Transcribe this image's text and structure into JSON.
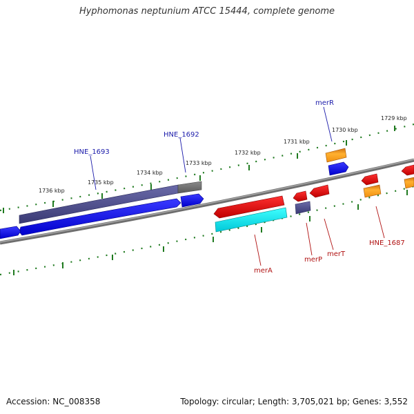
{
  "title": "Hyphomonas neptunium ATCC 15444, complete genome",
  "footer": {
    "accession": "Accession: NC_008358",
    "summary": "Topology: circular; Length: 3,705,021 bp; Genes: 3,552"
  },
  "colors": {
    "backbone": "#7a7a7a",
    "tick": "#1f7a1f",
    "label_blue": "#1a1aaa",
    "label_red": "#b01010",
    "gene_blue": "#0a0af0",
    "gene_dark": "#4a4a8a",
    "gene_red": "#e01010",
    "gene_cyan": "#10f0f0",
    "gene_orange": "#f0a020",
    "gene_gray": "#707070"
  },
  "scale_labels": [
    "1736 kbp",
    "1735 kbp",
    "1734 kbp",
    "1733 kbp",
    "1732 kbp",
    "1731 kbp",
    "1730 kbp",
    "1729 kbp"
  ],
  "gene_labels": {
    "HNE_1693": "HNE_1693",
    "HNE_1692": "HNE_1692",
    "merR": "merR",
    "merA": "merA",
    "merP": "merP",
    "merT": "merT",
    "HNE_1687": "HNE_1687"
  }
}
